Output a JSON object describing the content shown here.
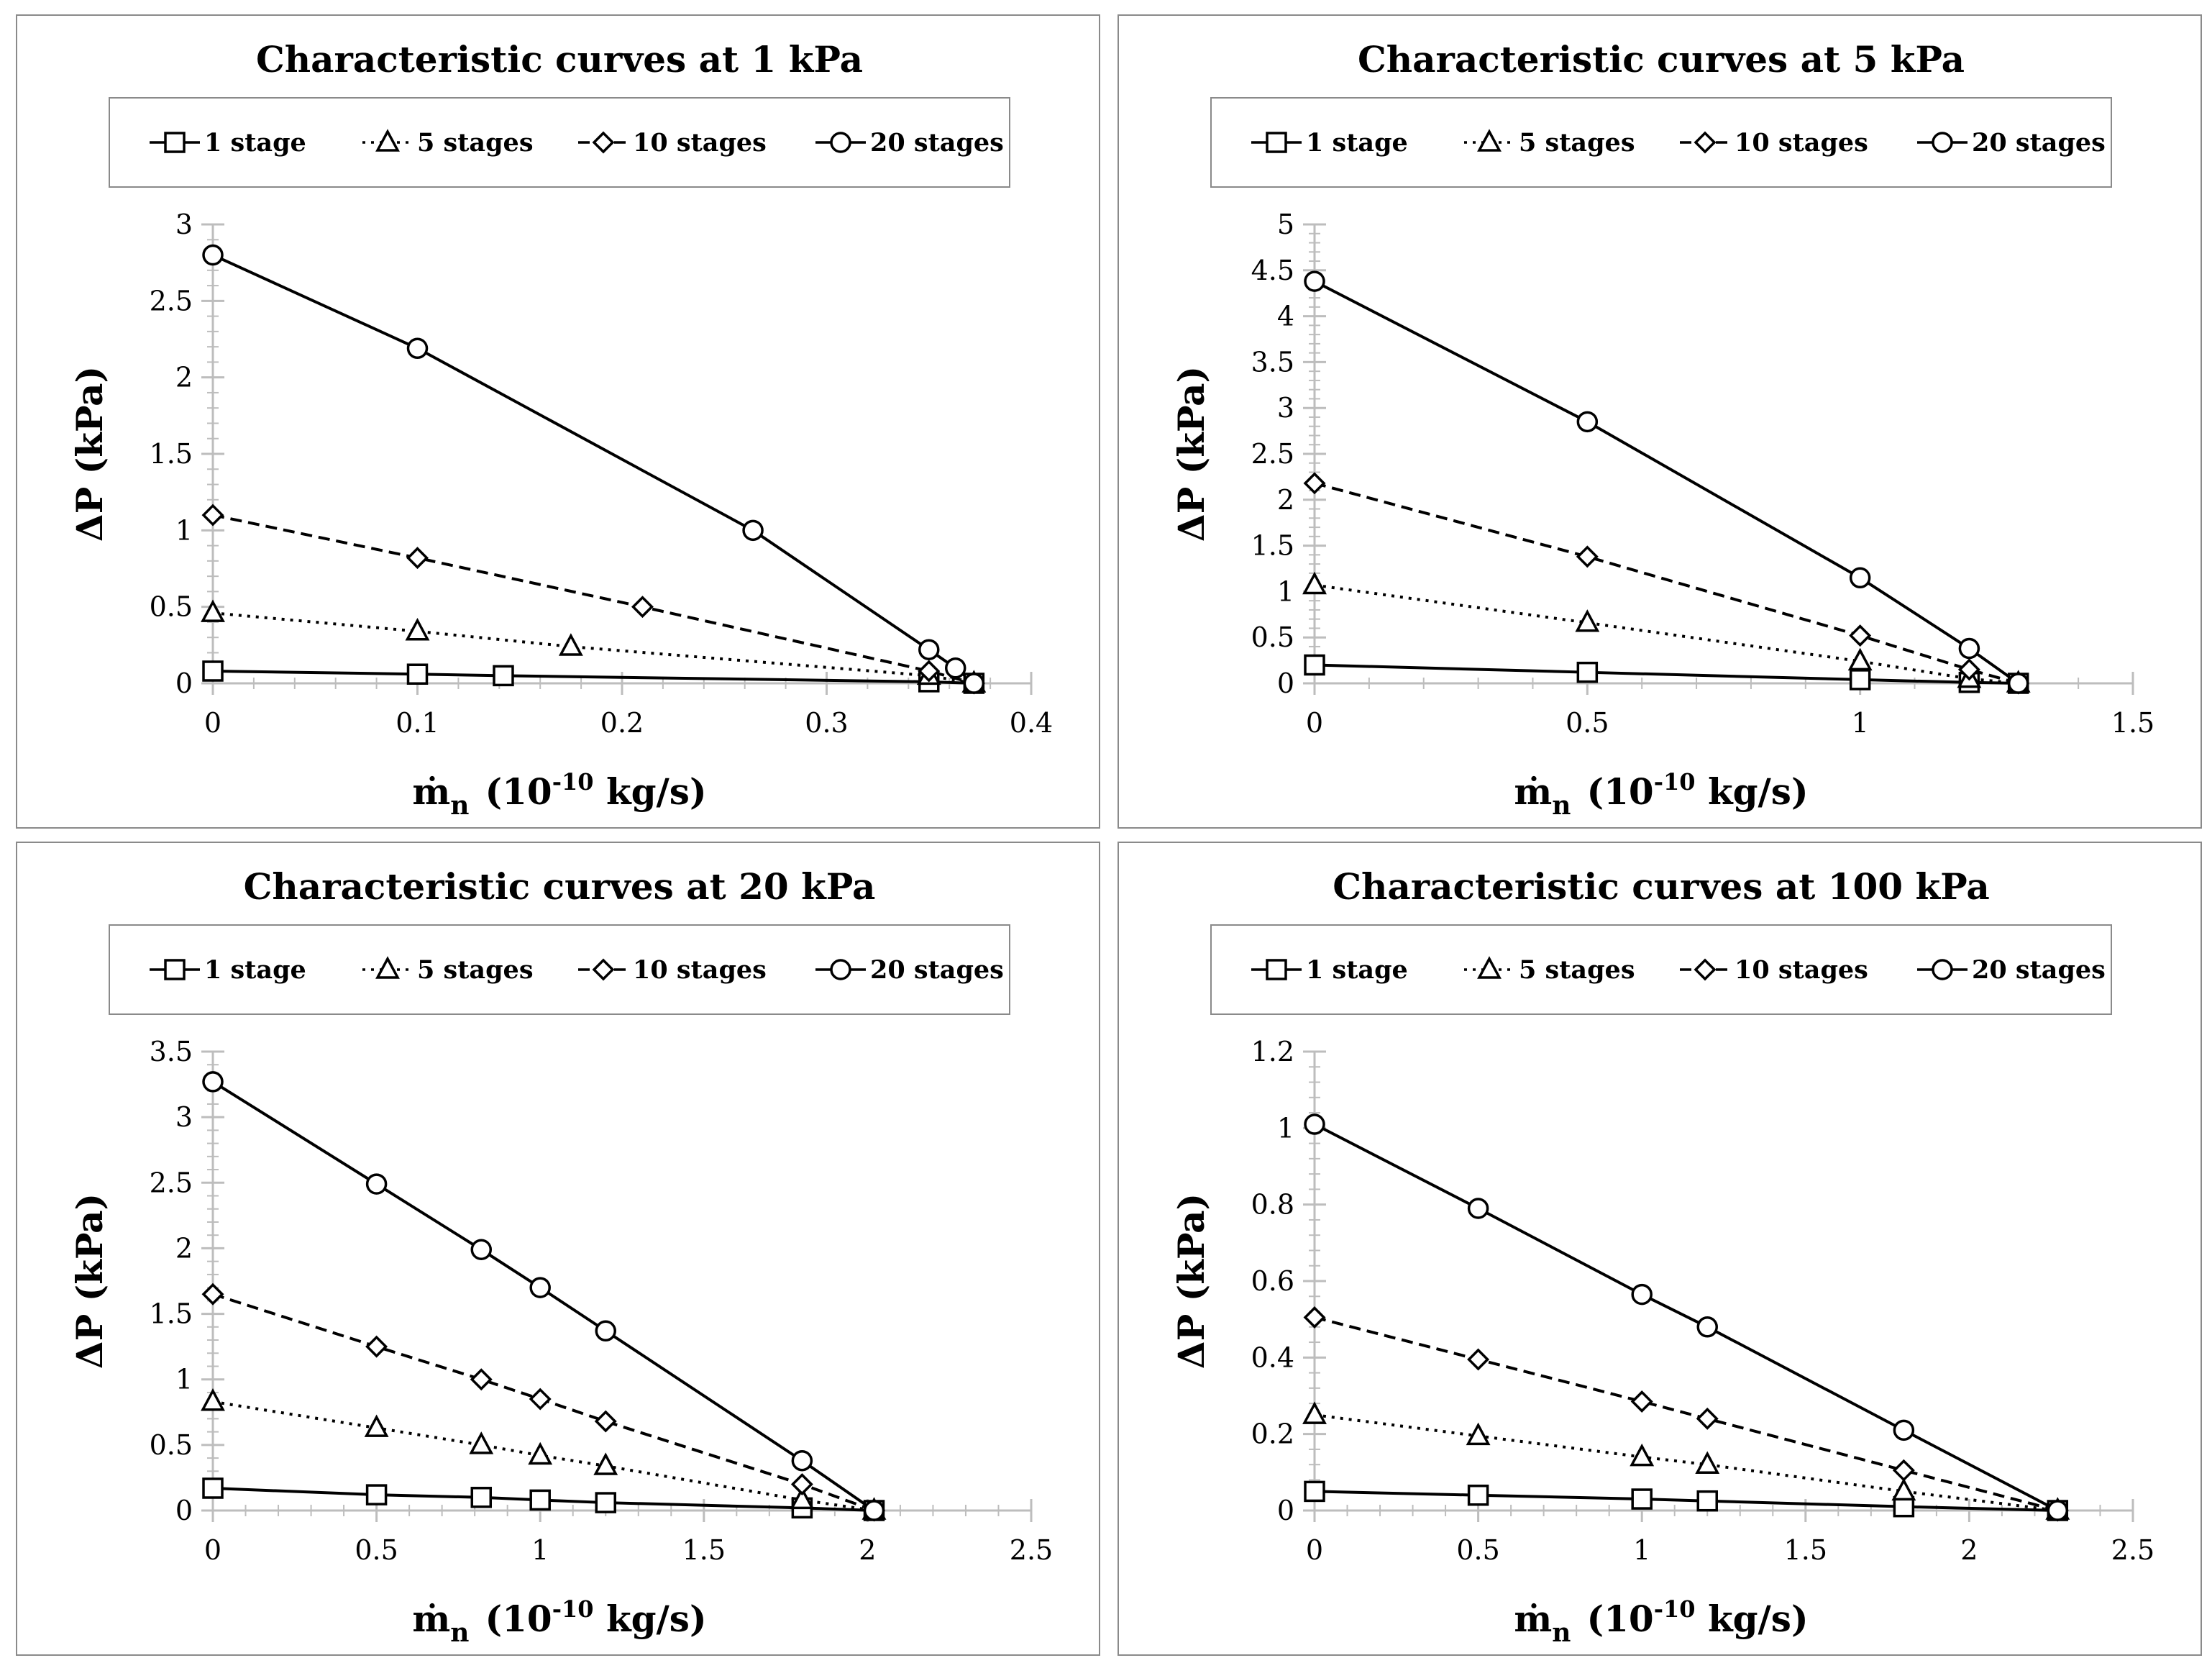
{
  "chart_data": [
    {
      "type": "line",
      "title": "Characteristic curves at 1 kPa",
      "xlabel": "ṁn (10-10 kg/s)",
      "xlabel_parts": {
        "symbol": "ṁ",
        "subscript": "n",
        "unit_prefix": "(10",
        "exponent": "-10",
        "unit_suffix": " kg/s)"
      },
      "ylabel": "ΔP (kPa)",
      "xlim": [
        0,
        0.4
      ],
      "ylim": [
        0,
        3
      ],
      "xticks": [
        0,
        0.1,
        0.2,
        0.3,
        0.4
      ],
      "xtick_labels": [
        "0",
        "0.1",
        "0.2",
        "0.3",
        "0.4"
      ],
      "yticks": [
        0,
        0.5,
        1,
        1.5,
        2,
        2.5,
        3
      ],
      "ytick_labels": [
        "0",
        "0.5",
        "1",
        "1.5",
        "2",
        "2.5",
        "3"
      ],
      "legend_position": "top",
      "series": [
        {
          "name": "1 stage",
          "marker": "square",
          "dash": "solid",
          "x": [
            0,
            0.1,
            0.142,
            0.35,
            0.372
          ],
          "y": [
            0.08,
            0.06,
            0.05,
            0.01,
            0.0
          ]
        },
        {
          "name": "5 stages",
          "marker": "triangle",
          "dash": "dotted",
          "x": [
            0,
            0.1,
            0.175,
            0.35,
            0.372
          ],
          "y": [
            0.46,
            0.34,
            0.24,
            0.05,
            0.0
          ]
        },
        {
          "name": "10 stages",
          "marker": "diamond",
          "dash": "dashed",
          "x": [
            0,
            0.1,
            0.21,
            0.35,
            0.372
          ],
          "y": [
            1.1,
            0.82,
            0.5,
            0.08,
            0.0
          ]
        },
        {
          "name": "20 stages",
          "marker": "circle",
          "dash": "solid",
          "x": [
            0,
            0.1,
            0.264,
            0.35,
            0.363,
            0.372
          ],
          "y": [
            2.8,
            2.19,
            1.0,
            0.22,
            0.1,
            0.0
          ]
        }
      ]
    },
    {
      "type": "line",
      "title": "Characteristic curves at 5 kPa",
      "xlabel": "ṁn (10-10 kg/s)",
      "xlabel_parts": {
        "symbol": "ṁ",
        "subscript": "n",
        "unit_prefix": "(10",
        "exponent": "-10",
        "unit_suffix": " kg/s)"
      },
      "ylabel": "ΔP (kPa)",
      "xlim": [
        0,
        1.5
      ],
      "ylim": [
        0,
        5
      ],
      "xticks": [
        0,
        0.5,
        1,
        1.5
      ],
      "xtick_labels": [
        "0",
        "0.5",
        "1",
        "1.5"
      ],
      "yticks": [
        0,
        0.5,
        1,
        1.5,
        2,
        2.5,
        3,
        3.5,
        4,
        4.5,
        5
      ],
      "ytick_labels": [
        "0",
        "0.5",
        "1",
        "1.5",
        "2",
        "2.5",
        "3",
        "3.5",
        "4",
        "4.5",
        "5"
      ],
      "legend_position": "top",
      "series": [
        {
          "name": "1 stage",
          "marker": "square",
          "dash": "solid",
          "x": [
            0,
            0.5,
            1.0,
            1.2,
            1.29
          ],
          "y": [
            0.2,
            0.12,
            0.04,
            0.01,
            0.0
          ]
        },
        {
          "name": "5 stages",
          "marker": "triangle",
          "dash": "dotted",
          "x": [
            0,
            0.5,
            1.0,
            1.2,
            1.29
          ],
          "y": [
            1.07,
            0.66,
            0.24,
            0.05,
            0.0
          ]
        },
        {
          "name": "10 stages",
          "marker": "diamond",
          "dash": "dashed",
          "x": [
            0,
            0.5,
            1.0,
            1.2,
            1.29
          ],
          "y": [
            2.18,
            1.38,
            0.52,
            0.15,
            0.0
          ]
        },
        {
          "name": "20 stages",
          "marker": "circle",
          "dash": "solid",
          "x": [
            0,
            0.5,
            1.0,
            1.2,
            1.29
          ],
          "y": [
            4.38,
            2.85,
            1.15,
            0.38,
            0.0
          ]
        }
      ]
    },
    {
      "type": "line",
      "title": "Characteristic curves at 20 kPa",
      "xlabel": "ṁn (10-10 kg/s)",
      "xlabel_parts": {
        "symbol": "ṁ",
        "subscript": "n",
        "unit_prefix": "(10",
        "exponent": "-10",
        "unit_suffix": " kg/s)"
      },
      "ylabel": "ΔP (kPa)",
      "xlim": [
        0,
        2.5
      ],
      "ylim": [
        0,
        3.5
      ],
      "xticks": [
        0,
        0.5,
        1,
        1.5,
        2,
        2.5
      ],
      "xtick_labels": [
        "0",
        "0.5",
        "1",
        "1.5",
        "2",
        "2.5"
      ],
      "yticks": [
        0,
        0.5,
        1,
        1.5,
        2,
        2.5,
        3,
        3.5
      ],
      "ytick_labels": [
        "0",
        "0.5",
        "1",
        "1.5",
        "2",
        "2.5",
        "3",
        "3.5"
      ],
      "legend_position": "top",
      "series": [
        {
          "name": "1 stage",
          "marker": "square",
          "dash": "solid",
          "x": [
            0,
            0.5,
            0.82,
            1.0,
            1.2,
            1.8,
            2.02
          ],
          "y": [
            0.17,
            0.12,
            0.1,
            0.08,
            0.06,
            0.02,
            0.0
          ]
        },
        {
          "name": "5 stages",
          "marker": "triangle",
          "dash": "dotted",
          "x": [
            0,
            0.5,
            0.82,
            1.0,
            1.2,
            1.8,
            2.02
          ],
          "y": [
            0.83,
            0.63,
            0.5,
            0.42,
            0.34,
            0.08,
            0.0
          ]
        },
        {
          "name": "10 stages",
          "marker": "diamond",
          "dash": "dashed",
          "x": [
            0,
            0.5,
            0.82,
            1.0,
            1.2,
            1.8,
            2.02
          ],
          "y": [
            1.65,
            1.25,
            1.0,
            0.85,
            0.68,
            0.2,
            0.0
          ]
        },
        {
          "name": "20 stages",
          "marker": "circle",
          "dash": "solid",
          "x": [
            0,
            0.5,
            0.82,
            1.0,
            1.2,
            1.8,
            2.02
          ],
          "y": [
            3.27,
            2.49,
            1.99,
            1.7,
            1.37,
            0.38,
            0.0
          ]
        }
      ]
    },
    {
      "type": "line",
      "title": "Characteristic curves at 100 kPa",
      "xlabel": "ṁn (10-10 kg/s)",
      "xlabel_parts": {
        "symbol": "ṁ",
        "subscript": "n",
        "unit_prefix": "(10",
        "exponent": "-10",
        "unit_suffix": " kg/s)"
      },
      "ylabel": "ΔP (kPa)",
      "xlim": [
        0,
        2.5
      ],
      "ylim": [
        0,
        1.2
      ],
      "xticks": [
        0,
        0.5,
        1,
        1.5,
        2,
        2.5
      ],
      "xtick_labels": [
        "0",
        "0.5",
        "1",
        "1.5",
        "2",
        "2.5"
      ],
      "yticks": [
        0,
        0.2,
        0.4,
        0.6,
        0.8,
        1,
        1.2
      ],
      "ytick_labels": [
        "0",
        "0.2",
        "0.4",
        "0.6",
        "0.8",
        "1",
        "1.2"
      ],
      "legend_position": "top",
      "series": [
        {
          "name": "1 stage",
          "marker": "square",
          "dash": "solid",
          "x": [
            0,
            0.5,
            1.0,
            1.2,
            1.8,
            2.27
          ],
          "y": [
            0.05,
            0.04,
            0.03,
            0.025,
            0.01,
            0.0
          ]
        },
        {
          "name": "5 stages",
          "marker": "triangle",
          "dash": "dotted",
          "x": [
            0,
            0.5,
            1.0,
            1.2,
            1.8,
            2.27
          ],
          "y": [
            0.25,
            0.195,
            0.14,
            0.12,
            0.05,
            0.0
          ]
        },
        {
          "name": "10 stages",
          "marker": "diamond",
          "dash": "dashed",
          "x": [
            0,
            0.5,
            1.0,
            1.2,
            1.8,
            2.27
          ],
          "y": [
            0.505,
            0.395,
            0.285,
            0.24,
            0.105,
            0.0
          ]
        },
        {
          "name": "20 stages",
          "marker": "circle",
          "dash": "solid",
          "x": [
            0,
            0.5,
            1.0,
            1.2,
            1.8,
            2.27
          ],
          "y": [
            1.01,
            0.79,
            0.565,
            0.48,
            0.21,
            0.0
          ]
        }
      ]
    }
  ]
}
